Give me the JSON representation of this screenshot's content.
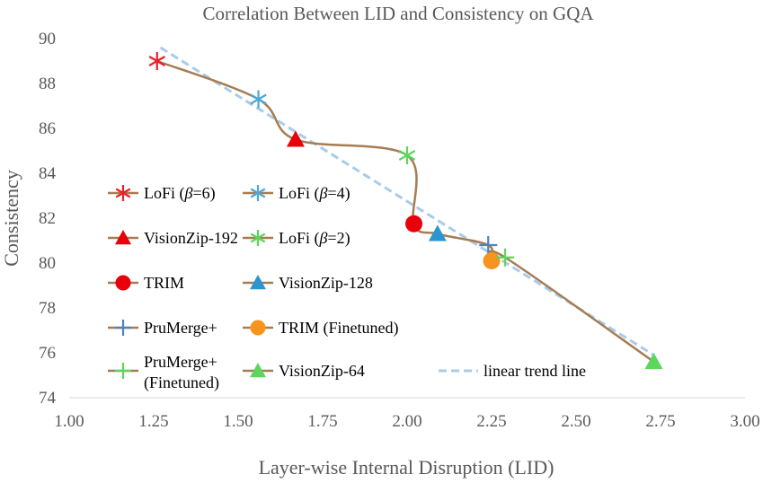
{
  "chart_data": {
    "type": "line",
    "title": "Correlation Between LID and Consistency on GQA",
    "xlabel": "Layer-wise Internal Disruption (LID)",
    "ylabel": "Consistency",
    "xlim": [
      1.0,
      3.0
    ],
    "ylim": [
      74,
      90
    ],
    "xticks": [
      "1.00",
      "1.25",
      "1.50",
      "1.75",
      "2.00",
      "2.25",
      "2.50",
      "2.75",
      "3.00"
    ],
    "yticks": [
      "74",
      "76",
      "78",
      "80",
      "82",
      "84",
      "86",
      "88",
      "90"
    ],
    "grid": false,
    "line_color": "#A67C52",
    "series": [
      {
        "name": "LoFi (β=6)",
        "label_main": "LoFi (",
        "label_greek": "β",
        "label_rest": "=6)",
        "x": 1.26,
        "y": 89.0,
        "marker": "asterisk",
        "color": "#E8212B"
      },
      {
        "name": "LoFi (β=4)",
        "label_main": "LoFi (",
        "label_greek": "β",
        "label_rest": "=4)",
        "x": 1.56,
        "y": 87.3,
        "marker": "asterisk",
        "color": "#4FA6D8"
      },
      {
        "name": "VisionZip-192",
        "x": 1.67,
        "y": 85.5,
        "marker": "triangle",
        "color": "#E8000B"
      },
      {
        "name": "LoFi (β=2)",
        "label_main": "LoFi (",
        "label_greek": "β",
        "label_rest": "=2)",
        "x": 2.0,
        "y": 84.8,
        "marker": "asterisk",
        "color": "#5CD65C"
      },
      {
        "name": "TRIM",
        "x": 2.02,
        "y": 81.75,
        "marker": "circle",
        "color": "#E8000B"
      },
      {
        "name": "VisionZip-128",
        "x": 2.09,
        "y": 81.3,
        "marker": "triangle",
        "color": "#2C95D0"
      },
      {
        "name": "PruMerge+",
        "x": 2.24,
        "y": 80.8,
        "marker": "plus",
        "color": "#4F81BD"
      },
      {
        "name": "TRIM (Finetuned)",
        "x": 2.25,
        "y": 80.1,
        "marker": "circle",
        "color": "#F7941D"
      },
      {
        "name": "PruMerge+ (Finetuned)",
        "label_line1": "PruMerge+",
        "label_line2": "(Finetuned)",
        "x": 2.29,
        "y": 80.25,
        "marker": "plus",
        "color": "#5CD65C"
      },
      {
        "name": "VisionZip-64",
        "x": 2.73,
        "y": 75.6,
        "marker": "triangle",
        "color": "#5CD65C"
      }
    ],
    "trend_line": {
      "name": "linear trend line",
      "x": [
        1.27,
        2.73
      ],
      "y": [
        89.6,
        75.9
      ],
      "color": "#A9CBEA"
    }
  }
}
